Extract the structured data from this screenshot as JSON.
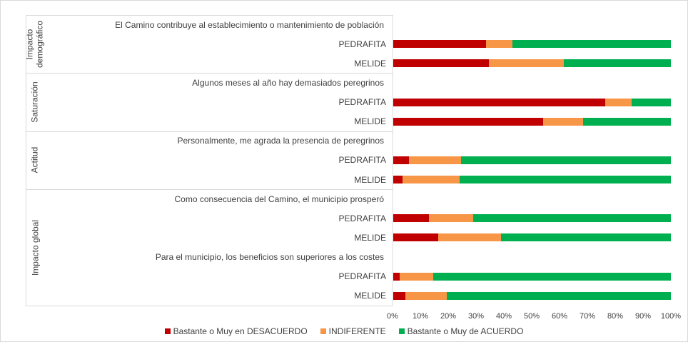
{
  "chart_data": {
    "type": "bar",
    "orientation": "horizontal",
    "stacked": true,
    "groups": [
      "Impacto demográfico",
      "Saturación",
      "Actitud",
      "Impacto global"
    ],
    "statements": [
      "El Camino contribuye al establecimiento o mantenimiento de población",
      "Algunos meses al año hay demasiados peregrinos",
      "Personalmente, me agrada la presencia de peregrinos",
      "Como consecuencia del Camino, el municipio prosperó",
      "Para el municipio, los beneficios son superiores a los costes"
    ],
    "categories": [
      "PEDRAFITA",
      "MELIDE",
      "PEDRAFITA",
      "MELIDE",
      "PEDRAFITA",
      "MELIDE",
      "PEDRAFITA",
      "MELIDE",
      "PEDRAFITA",
      "MELIDE"
    ],
    "series": [
      {
        "name": "Bastante o Muy en DESACUERDO",
        "color": "#c00000",
        "values": [
          33.5,
          34.5,
          76.5,
          54,
          6,
          3.5,
          13,
          16.5,
          2.5,
          4.5
        ]
      },
      {
        "name": "INDIFERENTE",
        "color": "#f79646",
        "values": [
          9.5,
          27,
          9.5,
          14.5,
          18.5,
          20.5,
          16,
          22.5,
          12,
          15
        ]
      },
      {
        "name": "Bastante o Muy de ACUERDO",
        "color": "#00b050",
        "values": [
          57,
          38.5,
          14,
          31.5,
          75.5,
          76,
          71,
          61,
          85.5,
          80.5
        ]
      }
    ],
    "xlim": [
      0,
      100
    ],
    "xticks": [
      {
        "value": 0,
        "label": "0%"
      },
      {
        "value": 10,
        "label": "10%"
      },
      {
        "value": 20,
        "label": "20%"
      },
      {
        "value": 30,
        "label": "30%"
      },
      {
        "value": 40,
        "label": "40%"
      },
      {
        "value": 50,
        "label": "50%"
      },
      {
        "value": 60,
        "label": "60%"
      },
      {
        "value": 70,
        "label": "70%"
      },
      {
        "value": 80,
        "label": "80%"
      },
      {
        "value": 90,
        "label": "90%"
      },
      {
        "value": 100,
        "label": "100%"
      }
    ],
    "grid": false
  }
}
